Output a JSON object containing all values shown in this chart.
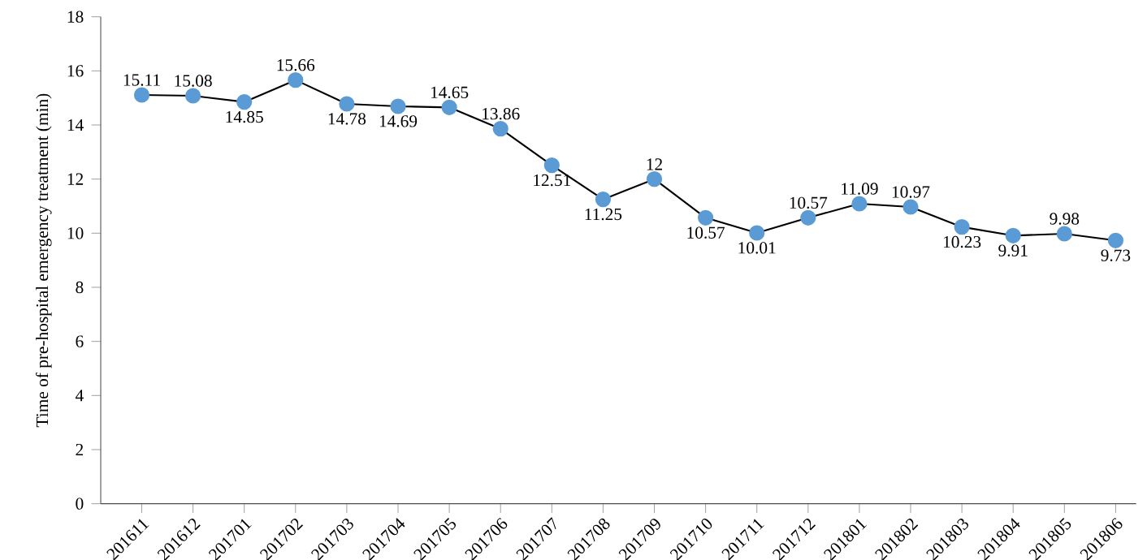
{
  "chart_data": {
    "type": "line",
    "ylabel": "Time of pre-hospital emergency  treatment  (min)",
    "categories": [
      "201611",
      "201612",
      "201701",
      "201702",
      "201703",
      "201704",
      "201705",
      "201706",
      "201707",
      "201708",
      "201709",
      "201710",
      "201711",
      "201712",
      "201801",
      "201802",
      "201803",
      "201804",
      "201805",
      "201806"
    ],
    "series": [
      {
        "color": "#5b9bd5",
        "values": [
          15.11,
          15.08,
          14.85,
          15.66,
          14.78,
          14.69,
          14.65,
          13.86,
          12.51,
          11.25,
          12,
          10.57,
          10.01,
          10.57,
          11.09,
          10.97,
          10.23,
          9.91,
          9.98,
          9.73
        ]
      }
    ],
    "ylim": [
      0,
      18
    ],
    "yticks": [
      0,
      2,
      4,
      6,
      8,
      10,
      12,
      14,
      16,
      18
    ],
    "marker": "circle",
    "line_style": "solid",
    "grid": false,
    "data_labels": true
  }
}
